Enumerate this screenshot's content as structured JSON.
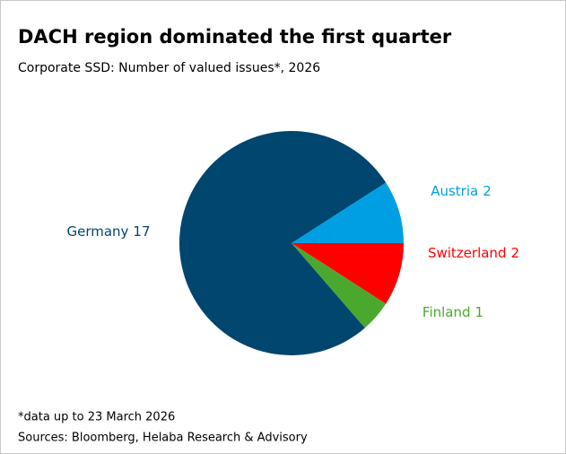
{
  "chart_data": {
    "type": "pie",
    "title": "DACH region dominated the first quarter",
    "subtitle": "Corporate SSD: Number of valued issues*, 2026",
    "categories": [
      "Austria",
      "Switzerland",
      "Finland",
      "Germany"
    ],
    "values": [
      2,
      2,
      1,
      17
    ],
    "colors": [
      "#009fe3",
      "#ff0000",
      "#4ba82e",
      "#00466e"
    ],
    "footnote": "*data up to 23 March 2026",
    "source": "Sources: Bloomberg, Helaba Research & Advisory"
  }
}
